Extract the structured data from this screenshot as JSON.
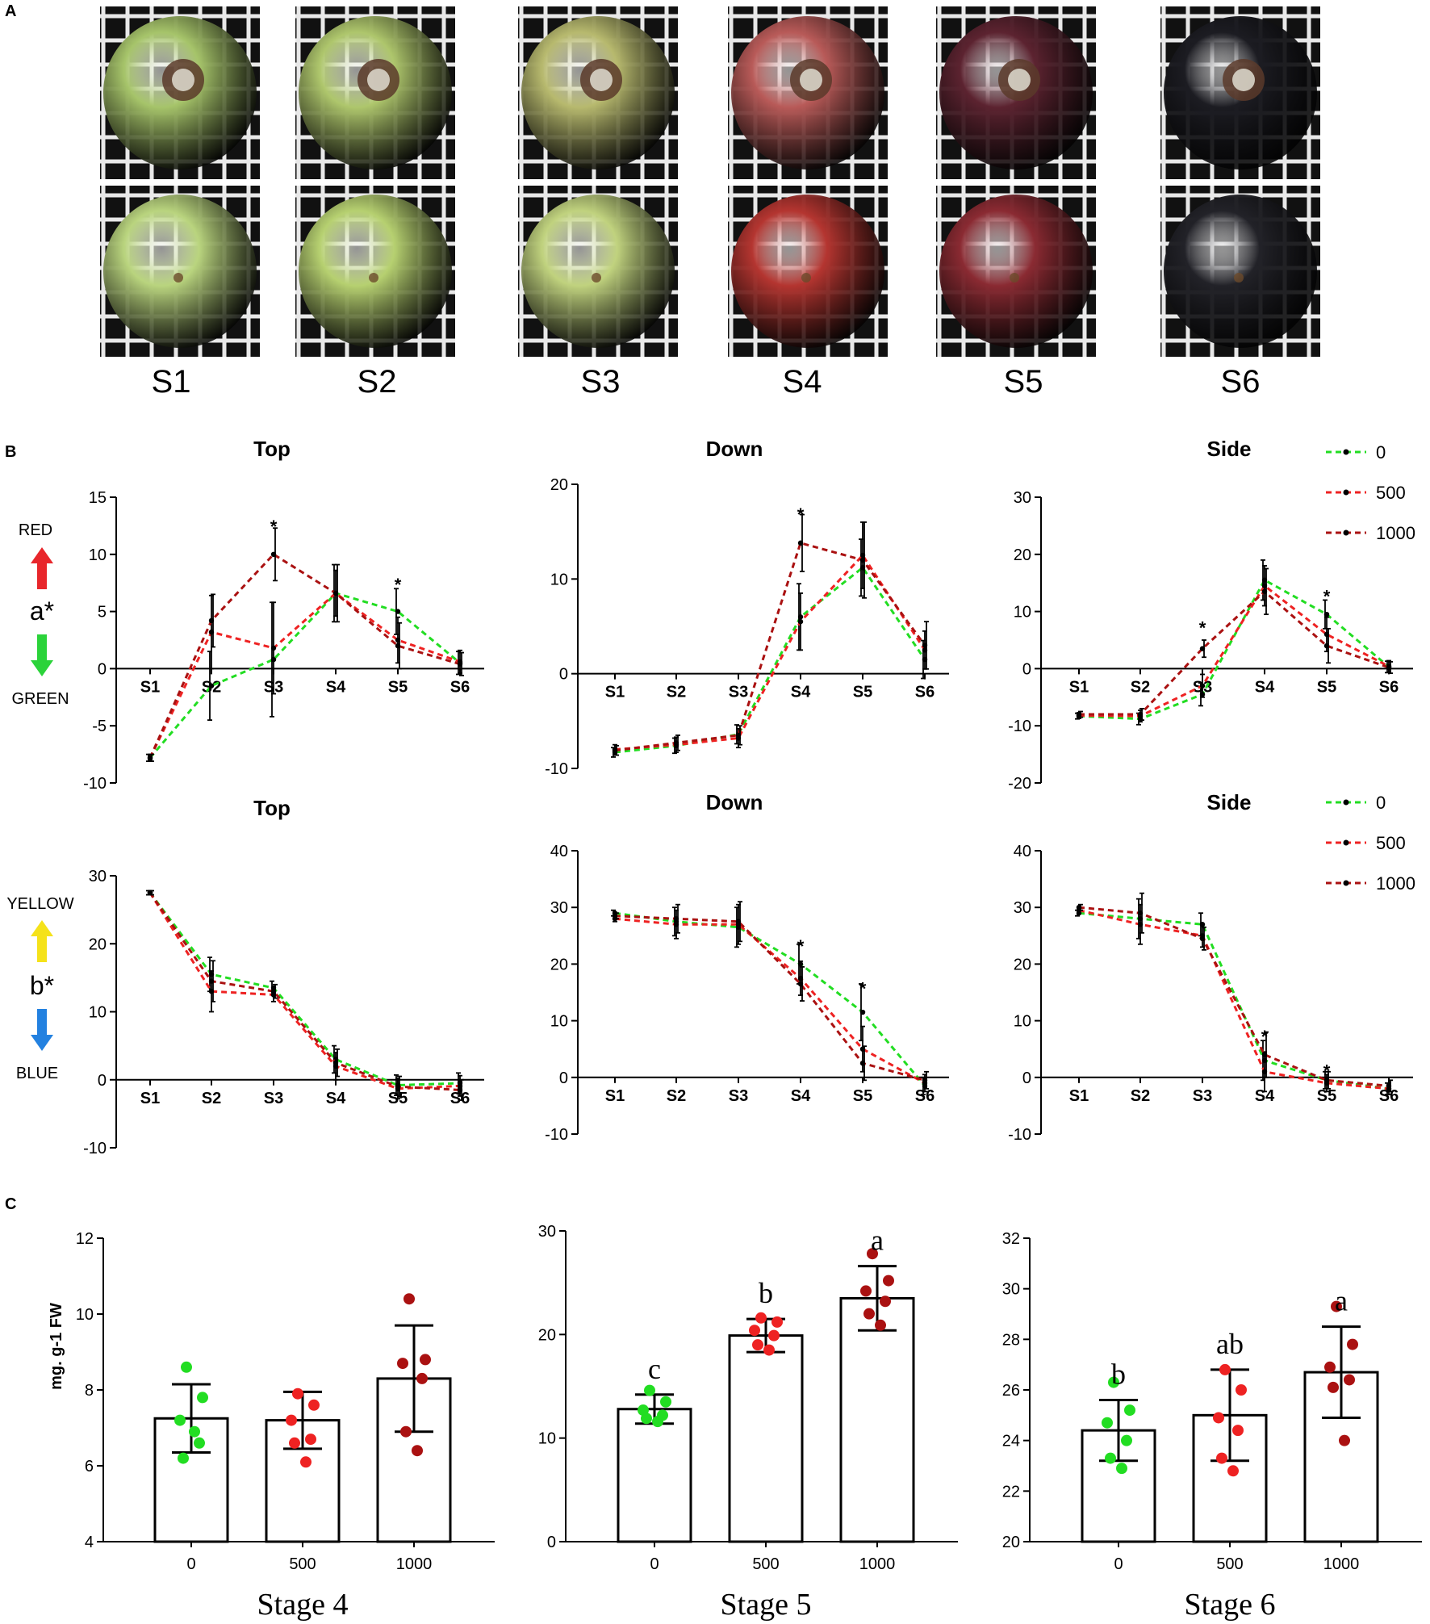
{
  "figure": {
    "panel_labels": [
      "A",
      "B",
      "C"
    ],
    "stage_labels": [
      "S1",
      "S2",
      "S3",
      "S4",
      "S5",
      "S6"
    ],
    "photos": {
      "top_colors": [
        "#a6c46a",
        "#aec66c",
        "#b7b96e",
        "#b85a58",
        "#5c2330",
        "#1c1c22"
      ],
      "bottom_colors": [
        "#b9d47e",
        "#b6d070",
        "#c0d27e",
        "#b43530",
        "#8a2a32",
        "#222228"
      ]
    },
    "indicators": {
      "a_star": {
        "label": "a*",
        "up": "RED",
        "down": "GREEN",
        "up_color": "#e8262b",
        "down_color": "#2bd33a"
      },
      "b_star": {
        "label": "b*",
        "up": "YELLOW",
        "down": "BLUE",
        "up_color": "#f5e21a",
        "down_color": "#2381e0"
      }
    },
    "legend": {
      "entries": [
        "0",
        "500",
        "1000"
      ],
      "colors": [
        "#22dd22",
        "#ee2222",
        "#aa1111"
      ]
    }
  },
  "chart_data": [
    {
      "id": "a_top",
      "type": "line",
      "title": "Top",
      "ylabel": "a*",
      "ylim": [
        -10,
        15
      ],
      "yticks": [
        -10,
        -5,
        0,
        5,
        10,
        15
      ],
      "categories": [
        "S1",
        "S2",
        "S3",
        "S4",
        "S5",
        "S6"
      ],
      "series": [
        {
          "name": "0",
          "values": [
            -7.8,
            -1.5,
            0.8,
            6.6,
            5.0,
            0.5
          ],
          "errors": [
            0.3,
            3.0,
            5.0,
            2.5,
            2.0,
            1.0
          ]
        },
        {
          "name": "500",
          "values": [
            -7.8,
            3.2,
            1.8,
            6.6,
            2.5,
            0.6
          ],
          "errors": [
            0.3,
            3.2,
            4.0,
            2.0,
            2.0,
            1.0
          ]
        },
        {
          "name": "1000",
          "values": [
            -7.8,
            4.2,
            10.0,
            6.6,
            2.0,
            0.4
          ],
          "errors": [
            0.3,
            2.3,
            2.3,
            2.5,
            2.0,
            1.0
          ]
        }
      ],
      "annotations": [
        {
          "x": "S3",
          "y": 12.6,
          "text": "*"
        },
        {
          "x": "S5",
          "y": 7.5,
          "text": "*"
        }
      ]
    },
    {
      "id": "a_down",
      "type": "line",
      "title": "Down",
      "ylabel": "a*",
      "ylim": [
        -10,
        20
      ],
      "yticks": [
        -10,
        0,
        10,
        20
      ],
      "categories": [
        "S1",
        "S2",
        "S3",
        "S4",
        "S5",
        "S6"
      ],
      "series": [
        {
          "name": "0",
          "values": [
            -8.3,
            -7.6,
            -6.4,
            6.0,
            11.2,
            1.5
          ],
          "errors": [
            0.5,
            0.8,
            1.0,
            3.5,
            3.0,
            2.0
          ]
        },
        {
          "name": "500",
          "values": [
            -8.0,
            -7.5,
            -6.8,
            5.5,
            12.5,
            2.5
          ],
          "errors": [
            0.5,
            0.8,
            1.0,
            3.0,
            3.5,
            2.0
          ]
        },
        {
          "name": "1000",
          "values": [
            -8.1,
            -7.3,
            -6.5,
            13.8,
            12.0,
            3.0
          ],
          "errors": [
            0.5,
            0.8,
            1.0,
            3.0,
            4.0,
            2.5
          ]
        }
      ],
      "annotations": [
        {
          "x": "S4",
          "y": 17.0,
          "text": "*"
        }
      ]
    },
    {
      "id": "a_side",
      "type": "line",
      "title": "Side",
      "ylabel": "a*",
      "ylim": [
        -20,
        30
      ],
      "yticks": [
        -20,
        -10,
        0,
        10,
        20,
        30
      ],
      "categories": [
        "S1",
        "S2",
        "S3",
        "S4",
        "S5",
        "S6"
      ],
      "series": [
        {
          "name": "0",
          "values": [
            -8.3,
            -8.8,
            -4.5,
            15.5,
            9.5,
            0.3
          ],
          "errors": [
            0.5,
            1.0,
            2.0,
            3.5,
            2.5,
            1.0
          ]
        },
        {
          "name": "500",
          "values": [
            -8.2,
            -8.3,
            -3.0,
            14.5,
            6.0,
            0.4
          ],
          "errors": [
            0.5,
            1.0,
            2.0,
            3.5,
            3.0,
            1.0
          ]
        },
        {
          "name": "1000",
          "values": [
            -8.0,
            -8.0,
            3.5,
            13.5,
            4.0,
            0.2
          ],
          "errors": [
            0.5,
            1.0,
            1.5,
            4.0,
            3.0,
            1.0
          ]
        }
      ],
      "annotations": [
        {
          "x": "S3",
          "y": 7.5,
          "text": "*"
        },
        {
          "x": "S5",
          "y": 13.0,
          "text": "*"
        }
      ]
    },
    {
      "id": "b_top",
      "type": "line",
      "title": "Top",
      "ylabel": "b*",
      "ylim": [
        -10,
        30
      ],
      "yticks": [
        -10,
        0,
        10,
        20,
        30
      ],
      "categories": [
        "S1",
        "S2",
        "S3",
        "S4",
        "S5",
        "S6"
      ],
      "series": [
        {
          "name": "0",
          "values": [
            27.5,
            15.5,
            13.5,
            3.0,
            -0.8,
            -0.5
          ],
          "errors": [
            0.3,
            2.5,
            1.0,
            2.0,
            1.5,
            1.5
          ]
        },
        {
          "name": "500",
          "values": [
            27.5,
            13.0,
            12.5,
            2.0,
            -1.3,
            -0.9
          ],
          "errors": [
            0.3,
            3.0,
            1.0,
            2.0,
            1.5,
            1.5
          ]
        },
        {
          "name": "1000",
          "values": [
            27.5,
            14.5,
            13.0,
            2.5,
            -1.0,
            -1.5
          ],
          "errors": [
            0.3,
            3.0,
            1.0,
            2.0,
            1.5,
            1.5
          ]
        }
      ],
      "annotations": []
    },
    {
      "id": "b_down",
      "type": "line",
      "title": "Down",
      "ylabel": "b*",
      "ylim": [
        -10,
        40
      ],
      "yticks": [
        -10,
        0,
        10,
        20,
        30,
        40
      ],
      "categories": [
        "S1",
        "S2",
        "S3",
        "S4",
        "S5",
        "S6"
      ],
      "series": [
        {
          "name": "0",
          "values": [
            29.0,
            27.5,
            26.5,
            20.0,
            11.5,
            -1.5
          ],
          "errors": [
            0.5,
            2.5,
            3.5,
            3.5,
            5.0,
            1.5
          ]
        },
        {
          "name": "500",
          "values": [
            28.0,
            27.0,
            27.0,
            17.5,
            5.0,
            -1.0
          ],
          "errors": [
            0.5,
            2.5,
            3.5,
            3.0,
            4.0,
            1.5
          ]
        },
        {
          "name": "1000",
          "values": [
            28.5,
            28.0,
            27.5,
            16.5,
            2.5,
            -0.5
          ],
          "errors": [
            0.5,
            2.5,
            3.5,
            3.0,
            3.0,
            1.5
          ]
        }
      ],
      "annotations": [
        {
          "x": "S4",
          "y": 23.5,
          "text": "*"
        },
        {
          "x": "S5",
          "y": 16.0,
          "text": "*"
        }
      ]
    },
    {
      "id": "b_side",
      "type": "line",
      "title": "Side",
      "ylabel": "b*",
      "ylim": [
        -10,
        40
      ],
      "yticks": [
        -10,
        0,
        10,
        20,
        30,
        40
      ],
      "categories": [
        "S1",
        "S2",
        "S3",
        "S4",
        "S5",
        "S6"
      ],
      "series": [
        {
          "name": "0",
          "values": [
            29.0,
            28.0,
            27.0,
            3.0,
            -0.5,
            -2.0
          ],
          "errors": [
            0.5,
            3.5,
            2.0,
            3.5,
            1.5,
            1.0
          ]
        },
        {
          "name": "500",
          "values": [
            29.5,
            27.0,
            25.0,
            1.0,
            -1.0,
            -2.0
          ],
          "errors": [
            0.5,
            3.5,
            2.0,
            3.5,
            1.5,
            1.0
          ]
        },
        {
          "name": "1000",
          "values": [
            30.0,
            29.0,
            24.5,
            4.0,
            -0.5,
            -1.5
          ],
          "errors": [
            0.5,
            3.5,
            2.0,
            4.0,
            1.5,
            1.0
          ]
        }
      ],
      "annotations": [
        {
          "x": "S4",
          "y": 7.5,
          "text": "*"
        },
        {
          "x": "S5",
          "y": 1.5,
          "text": "*"
        }
      ]
    },
    {
      "id": "c_stage4",
      "type": "bar",
      "title": "Stage 4",
      "ylabel": "mg. g-1 FW",
      "ylim": [
        4,
        12
      ],
      "yticks": [
        4,
        6,
        8,
        10,
        12
      ],
      "categories": [
        "0",
        "500",
        "1000"
      ],
      "values": [
        7.25,
        7.2,
        8.3
      ],
      "errors": [
        0.9,
        0.75,
        1.4
      ],
      "letters": [
        "",
        "",
        ""
      ],
      "points": [
        [
          8.6,
          7.8,
          7.2,
          6.6,
          6.2,
          6.9
        ],
        [
          7.9,
          7.6,
          7.2,
          6.7,
          6.6,
          6.1
        ],
        [
          10.4,
          8.8,
          8.7,
          8.3,
          6.9,
          6.4
        ]
      ]
    },
    {
      "id": "c_stage5",
      "type": "bar",
      "title": "Stage 5",
      "ylabel": "",
      "ylim": [
        0,
        30
      ],
      "yticks": [
        0,
        10,
        20,
        30
      ],
      "categories": [
        "0",
        "500",
        "1000"
      ],
      "values": [
        12.8,
        19.9,
        23.5
      ],
      "errors": [
        1.4,
        1.6,
        3.1
      ],
      "letters": [
        "c",
        "b",
        "a"
      ],
      "points": [
        [
          14.6,
          13.5,
          12.7,
          12.2,
          11.9,
          11.6
        ],
        [
          21.6,
          21.2,
          20.4,
          19.9,
          19.0,
          18.5
        ],
        [
          27.8,
          25.2,
          24.2,
          23.2,
          22.0,
          20.9
        ]
      ]
    },
    {
      "id": "c_stage6",
      "type": "bar",
      "title": "Stage 6",
      "ylabel": "",
      "ylim": [
        20,
        32
      ],
      "yticks": [
        20,
        22,
        24,
        26,
        28,
        30,
        32
      ],
      "categories": [
        "0",
        "500",
        "1000"
      ],
      "values": [
        24.4,
        25.0,
        26.7
      ],
      "errors": [
        1.2,
        1.8,
        1.8
      ],
      "letters": [
        "b",
        "ab",
        "a"
      ],
      "points": [
        [
          26.3,
          25.2,
          24.7,
          24.0,
          23.3,
          22.9
        ],
        [
          26.8,
          26.0,
          24.9,
          24.4,
          23.3,
          22.8
        ],
        [
          29.3,
          27.8,
          26.9,
          26.4,
          26.1,
          24.0
        ]
      ]
    }
  ]
}
